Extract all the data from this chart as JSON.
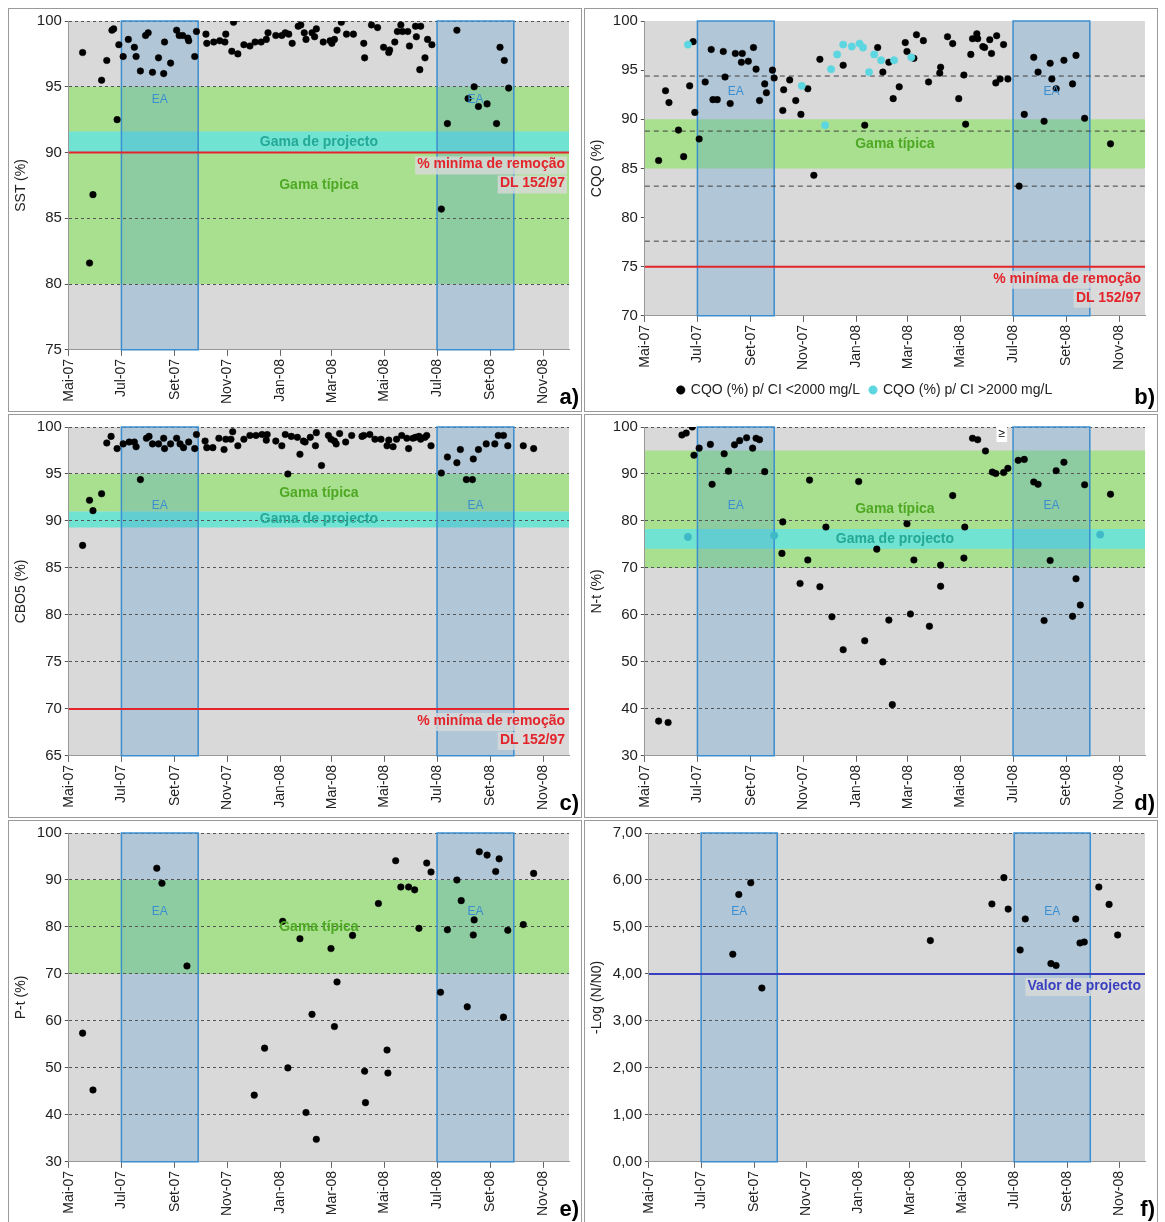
{
  "chart_data": [
    {
      "type": "scatter",
      "ylabel": "SST (%)",
      "xlim": [
        "2007-05-01",
        "2008-12-01"
      ],
      "xticks": [
        {
          "value": "2007-05-01",
          "label": "Mai-07"
        },
        {
          "value": "2007-07-01",
          "label": "Jul-07"
        },
        {
          "value": "2007-09-01",
          "label": "Set-07"
        },
        {
          "value": "2007-11-01",
          "label": "Nov-07"
        },
        {
          "value": "2008-01-01",
          "label": "Jan-08"
        },
        {
          "value": "2008-03-01",
          "label": "Mar-08"
        },
        {
          "value": "2008-05-01",
          "label": "Mai-08"
        },
        {
          "value": "2008-07-01",
          "label": "Jul-08"
        },
        {
          "value": "2008-09-01",
          "label": "Set-08"
        },
        {
          "value": "2008-11-01",
          "label": "Nov-08"
        }
      ],
      "ylim": [
        75,
        100
      ],
      "yticks": [
        75,
        80,
        85,
        90,
        95,
        100
      ],
      "grid": "y",
      "marker": "circle",
      "bands": [
        {
          "axis": "y",
          "from": 80,
          "to": 95,
          "label": "Gama típica",
          "color": "#a9e090"
        },
        {
          "axis": "y",
          "from": 90,
          "to": 91.6,
          "label": "Gama de projecto",
          "color": "#70e3d3"
        },
        {
          "axis": "x",
          "from": "2007-07-01",
          "to": "2007-09-28",
          "label": "EA",
          "color": "#3b8ed0"
        },
        {
          "axis": "x",
          "from": "2008-07-01",
          "to": "2008-09-28",
          "label": "EA",
          "color": "#3b8ed0"
        }
      ],
      "ref_lines": [
        {
          "axis": "y",
          "value": 90,
          "label": "% miníma de remoção\nDL 152/97",
          "color": "#e3242b"
        }
      ],
      "annotations": [
        "a)"
      ],
      "series": [
        {
          "color": "#000000",
          "x": [
            "2007-05-17",
            "2007-05-25",
            "2007-05-29",
            "2007-06-08",
            "2007-06-14",
            "2007-06-20",
            "2007-06-22",
            "2007-06-26",
            "2007-06-28",
            "2007-07-03",
            "2007-07-09",
            "2007-07-16",
            "2007-07-18",
            "2007-07-23",
            "2007-07-29",
            "2007-08-01",
            "2007-08-06",
            "2007-08-13",
            "2007-08-19",
            "2007-08-20",
            "2007-08-27",
            "2007-09-03",
            "2007-09-06",
            "2007-09-10",
            "2007-09-16",
            "2007-09-17",
            "2007-09-24",
            "2007-09-26",
            "2007-10-07",
            "2007-10-08",
            "2007-10-16",
            "2007-10-23",
            "2007-10-29",
            "2007-10-30",
            "2007-11-06",
            "2007-11-08",
            "2007-11-13",
            "2007-11-20",
            "2007-11-27",
            "2007-12-03",
            "2007-12-10",
            "2007-12-16",
            "2007-12-18",
            "2007-12-27",
            "2008-01-03",
            "2008-01-07",
            "2008-01-11",
            "2008-01-15",
            "2008-01-22",
            "2008-01-25",
            "2008-01-29",
            "2008-01-31",
            "2008-02-07",
            "2008-02-10",
            "2008-02-12",
            "2008-02-20",
            "2008-02-28",
            "2008-03-01",
            "2008-03-04",
            "2008-03-07",
            "2008-03-12",
            "2008-03-18",
            "2008-03-26",
            "2008-04-07",
            "2008-04-08",
            "2008-04-16",
            "2008-04-23",
            "2008-04-30",
            "2008-05-06",
            "2008-05-07",
            "2008-05-13",
            "2008-05-16",
            "2008-05-20",
            "2008-05-22",
            "2008-05-28",
            "2008-05-30",
            "2008-06-06",
            "2008-06-07",
            "2008-06-11",
            "2008-06-12",
            "2008-06-17",
            "2008-06-20",
            "2008-06-25",
            "2008-07-06",
            "2008-07-13",
            "2008-07-24",
            "2008-08-06",
            "2008-08-13",
            "2008-08-18",
            "2008-08-28",
            "2008-09-08",
            "2008-09-12",
            "2008-09-17",
            "2008-09-22"
          ],
          "values": [
            97.6,
            81.6,
            86.8,
            95.5,
            97.0,
            99.3,
            99.4,
            92.5,
            98.2,
            97.3,
            98.6,
            98.0,
            97.3,
            96.2,
            98.9,
            99.1,
            96.1,
            97.2,
            96.0,
            98.4,
            96.8,
            99.3,
            98.9,
            98.9,
            98.7,
            98.5,
            97.3,
            99.2,
            99.0,
            98.3,
            98.4,
            98.5,
            98.4,
            99.0,
            97.7,
            99.9,
            97.5,
            98.2,
            98.1,
            98.4,
            98.4,
            98.6,
            99.1,
            98.9,
            98.9,
            99.1,
            99.0,
            98.3,
            99.6,
            99.7,
            99.1,
            98.6,
            99.1,
            98.8,
            99.4,
            98.4,
            98.5,
            98.3,
            98.6,
            99.3,
            99.9,
            99.0,
            99.0,
            98.3,
            97.2,
            99.7,
            99.5,
            98.0,
            97.6,
            97.8,
            98.4,
            99.2,
            99.7,
            99.2,
            99.2,
            98.1,
            99.6,
            98.8,
            96.3,
            99.6,
            97.2,
            98.6,
            98.2,
            85.7,
            92.2,
            99.3,
            94.1,
            95.0,
            93.5,
            93.7,
            92.2,
            98.0,
            97.0,
            94.9
          ]
        }
      ]
    },
    {
      "type": "scatter",
      "ylabel": "CQO (%)",
      "xlim": [
        "2007-05-01",
        "2008-12-01"
      ],
      "xticks": [
        {
          "value": "2007-05-01",
          "label": "Mai-07"
        },
        {
          "value": "2007-07-01",
          "label": "Jul-07"
        },
        {
          "value": "2007-09-01",
          "label": "Set-07"
        },
        {
          "value": "2007-11-01",
          "label": "Nov-07"
        },
        {
          "value": "2008-01-01",
          "label": "Jan-08"
        },
        {
          "value": "2008-03-01",
          "label": "Mar-08"
        },
        {
          "value": "2008-05-01",
          "label": "Mai-08"
        },
        {
          "value": "2008-07-01",
          "label": "Jul-08"
        },
        {
          "value": "2008-09-01",
          "label": "Set-08"
        },
        {
          "value": "2008-11-01",
          "label": "Nov-08"
        }
      ],
      "ylim": [
        70,
        100
      ],
      "yticks": [
        70,
        75,
        80,
        85,
        90,
        95,
        100
      ],
      "marker": "circle",
      "legend": "bottom",
      "bands": [
        {
          "axis": "y",
          "from": 85,
          "to": 90,
          "label": "Gama típica",
          "color": "#a9e090"
        },
        {
          "axis": "x",
          "from": "2007-07-01",
          "to": "2007-09-28",
          "label": "EA",
          "color": "#3b8ed0"
        },
        {
          "axis": "x",
          "from": "2008-07-01",
          "to": "2008-09-28",
          "label": "EA",
          "color": "#3b8ed0"
        }
      ],
      "ref_lines": [
        {
          "axis": "y",
          "value": 94.4,
          "color": "#404040",
          "line_style": "dashed"
        },
        {
          "axis": "y",
          "value": 88.8,
          "color": "#404040",
          "line_style": "dashed"
        },
        {
          "axis": "y",
          "value": 83.2,
          "color": "#404040",
          "line_style": "dashed"
        },
        {
          "axis": "y",
          "value": 77.6,
          "color": "#404040",
          "line_style": "dashed"
        },
        {
          "axis": "y",
          "value": 75,
          "label": "% miníma de remoção\nDL 152/97",
          "color": "#e3242b"
        }
      ],
      "annotations": [
        "b)"
      ],
      "series": [
        {
          "name": "CQO (%) p/ CI <2000 mg/L",
          "color": "#000000",
          "x": [
            "2007-05-17",
            "2007-05-25",
            "2007-05-29",
            "2007-06-09",
            "2007-06-15",
            "2007-06-22",
            "2007-06-26",
            "2007-06-28",
            "2007-07-03",
            "2007-07-10",
            "2007-07-17",
            "2007-07-19",
            "2007-07-24",
            "2007-07-31",
            "2007-08-02",
            "2007-08-08",
            "2007-08-14",
            "2007-08-21",
            "2007-08-22",
            "2007-08-29",
            "2007-09-04",
            "2007-09-07",
            "2007-09-11",
            "2007-09-17",
            "2007-09-19",
            "2007-09-26",
            "2007-09-28",
            "2007-10-08",
            "2007-10-09",
            "2007-10-16",
            "2007-10-23",
            "2007-10-29",
            "2007-11-06",
            "2007-11-13",
            "2007-11-20",
            "2007-12-17",
            "2008-01-11",
            "2008-01-26",
            "2008-02-01",
            "2008-02-08",
            "2008-02-13",
            "2008-02-20",
            "2008-02-27",
            "2008-02-29",
            "2008-03-08",
            "2008-03-11",
            "2008-03-19",
            "2008-03-25",
            "2008-04-07",
            "2008-04-08",
            "2008-04-16",
            "2008-04-22",
            "2008-04-29",
            "2008-05-05",
            "2008-05-07",
            "2008-05-13",
            "2008-05-15",
            "2008-05-20",
            "2008-05-21",
            "2008-05-27",
            "2008-05-29",
            "2008-06-04",
            "2008-06-06",
            "2008-06-11",
            "2008-06-12",
            "2008-06-16",
            "2008-06-20",
            "2008-06-25",
            "2008-07-08",
            "2008-07-14",
            "2008-07-25",
            "2008-07-30",
            "2008-08-06",
            "2008-08-13",
            "2008-08-15",
            "2008-08-20",
            "2008-08-29",
            "2008-09-08",
            "2008-09-12",
            "2008-09-22",
            "2008-10-22"
          ],
          "values": [
            85.8,
            92.9,
            91.7,
            88.9,
            86.2,
            93.4,
            97.9,
            90.7,
            88.0,
            93.8,
            97.1,
            92.0,
            92.0,
            96.9,
            94.3,
            91.6,
            96.7,
            95.8,
            96.7,
            95.9,
            97.3,
            95.1,
            91.9,
            93.6,
            92.7,
            95.0,
            94.2,
            90.9,
            93.0,
            94.0,
            91.9,
            90.5,
            93.1,
            84.3,
            96.1,
            95.5,
            89.4,
            97.3,
            94.8,
            95.8,
            92.1,
            93.3,
            97.8,
            96.9,
            96.2,
            98.6,
            98.0,
            93.8,
            94.7,
            95.3,
            98.4,
            97.7,
            92.1,
            94.5,
            89.5,
            96.6,
            98.2,
            98.7,
            98.2,
            97.4,
            97.3,
            98.1,
            96.7,
            93.7,
            98.5,
            94.1,
            97.6,
            94.1,
            83.2,
            90.5,
            96.3,
            94.8,
            89.8,
            95.7,
            94.1,
            93.1,
            96.0,
            93.6,
            96.5,
            90.1,
            87.5
          ]
        },
        {
          "name": "CQO (%) p/ CI >2000 mg/L",
          "color": "#5cd6e0",
          "x": [
            "2007-06-20",
            "2007-10-30",
            "2007-11-26",
            "2007-12-03",
            "2007-12-10",
            "2007-12-17",
            "2007-12-27",
            "2008-01-05",
            "2008-01-09",
            "2008-01-16",
            "2008-01-22",
            "2008-01-30",
            "2008-02-14",
            "2008-03-05"
          ],
          "values": [
            97.6,
            93.4,
            89.4,
            95.1,
            96.6,
            97.6,
            97.4,
            97.7,
            97.3,
            94.8,
            96.6,
            96.0,
            96.0,
            96.3
          ]
        }
      ]
    },
    {
      "type": "scatter",
      "ylabel": "CBO5 (%)",
      "xlim": [
        "2007-05-01",
        "2008-12-01"
      ],
      "xticks": [
        {
          "value": "2007-05-01",
          "label": "Mai-07"
        },
        {
          "value": "2007-07-01",
          "label": "Jul-07"
        },
        {
          "value": "2007-09-01",
          "label": "Set-07"
        },
        {
          "value": "2007-11-01",
          "label": "Nov-07"
        },
        {
          "value": "2008-01-01",
          "label": "Jan-08"
        },
        {
          "value": "2008-03-01",
          "label": "Mar-08"
        },
        {
          "value": "2008-05-01",
          "label": "Mai-08"
        },
        {
          "value": "2008-07-01",
          "label": "Jul-08"
        },
        {
          "value": "2008-09-01",
          "label": "Set-08"
        },
        {
          "value": "2008-11-01",
          "label": "Nov-08"
        }
      ],
      "ylim": [
        65,
        100
      ],
      "yticks": [
        65,
        70,
        75,
        80,
        85,
        90,
        95,
        100
      ],
      "grid": "y",
      "marker": "circle",
      "bands": [
        {
          "axis": "y",
          "from": 91,
          "to": 95,
          "label": "Gama típica",
          "color": "#a9e090"
        },
        {
          "axis": "y",
          "from": 89.3,
          "to": 91,
          "label": "Gama de projecto",
          "color": "#70e3d3"
        },
        {
          "axis": "x",
          "from": "2007-07-01",
          "to": "2007-09-28",
          "label": "EA",
          "color": "#3b8ed0"
        },
        {
          "axis": "x",
          "from": "2008-07-01",
          "to": "2008-09-28",
          "label": "EA",
          "color": "#3b8ed0"
        }
      ],
      "ref_lines": [
        {
          "axis": "y",
          "value": 70,
          "label": "% miníma de remoção\nDL 152/97",
          "color": "#e3242b"
        }
      ],
      "annotations": [
        "c)"
      ],
      "series": [
        {
          "color": "#000000",
          "x": [
            "2007-05-17",
            "2007-05-25",
            "2007-05-29",
            "2007-06-08",
            "2007-06-14",
            "2007-06-19",
            "2007-06-26",
            "2007-07-03",
            "2007-07-10",
            "2007-07-16",
            "2007-07-18",
            "2007-07-23",
            "2007-07-30",
            "2007-08-02",
            "2007-08-06",
            "2007-08-13",
            "2007-08-19",
            "2007-08-20",
            "2007-08-27",
            "2007-09-03",
            "2007-09-07",
            "2007-09-11",
            "2007-09-17",
            "2007-09-24",
            "2007-09-26",
            "2007-10-06",
            "2007-10-08",
            "2007-10-15",
            "2007-10-22",
            "2007-10-28",
            "2007-10-30",
            "2007-11-05",
            "2007-11-07",
            "2007-11-13",
            "2007-11-20",
            "2007-11-27",
            "2007-12-04",
            "2007-12-11",
            "2007-12-16",
            "2007-12-17",
            "2007-12-27",
            "2008-01-03",
            "2008-01-07",
            "2008-01-10",
            "2008-01-14",
            "2008-01-21",
            "2008-01-24",
            "2008-01-28",
            "2008-01-30",
            "2008-02-05",
            "2008-02-11",
            "2008-02-12",
            "2008-02-18",
            "2008-02-26",
            "2008-02-29",
            "2008-03-04",
            "2008-03-06",
            "2008-03-10",
            "2008-03-17",
            "2008-03-24",
            "2008-04-05",
            "2008-04-07",
            "2008-04-14",
            "2008-04-20",
            "2008-04-27",
            "2008-05-04",
            "2008-05-06",
            "2008-05-11",
            "2008-05-15",
            "2008-05-21",
            "2008-05-27",
            "2008-05-29",
            "2008-06-03",
            "2008-06-06",
            "2008-06-10",
            "2008-06-12",
            "2008-06-17",
            "2008-06-19",
            "2008-06-24",
            "2008-07-06",
            "2008-07-13",
            "2008-07-24",
            "2008-07-28",
            "2008-08-04",
            "2008-08-11",
            "2008-08-12",
            "2008-08-18",
            "2008-08-27",
            "2008-09-06",
            "2008-09-10",
            "2008-09-16",
            "2008-09-21",
            "2008-10-09",
            "2008-10-21"
          ],
          "values": [
            87.4,
            92.2,
            91.1,
            92.9,
            98.3,
            99.0,
            97.7,
            98.2,
            98.4,
            98.4,
            97.9,
            94.4,
            98.8,
            99.0,
            98.2,
            98.2,
            98.8,
            97.7,
            98.2,
            98.8,
            98.2,
            97.8,
            98.4,
            97.7,
            99.2,
            98.5,
            97.8,
            97.8,
            98.8,
            97.6,
            98.7,
            98.7,
            99.5,
            98.0,
            98.7,
            99.1,
            99.1,
            99.2,
            98.6,
            99.2,
            98.5,
            98.0,
            99.2,
            95.0,
            99.0,
            98.9,
            97.1,
            98.5,
            98.4,
            98.9,
            98.0,
            99.4,
            95.9,
            99.1,
            98.7,
            98.5,
            98.2,
            99.3,
            98.4,
            99.1,
            99.0,
            99.1,
            99.2,
            98.7,
            98.7,
            98.0,
            98.6,
            97.9,
            98.7,
            99.1,
            98.8,
            97.7,
            98.8,
            98.9,
            99.0,
            98.7,
            98.9,
            99.1,
            98.0,
            95.1,
            96.8,
            96.2,
            97.6,
            94.4,
            94.4,
            96.6,
            97.6,
            98.2,
            98.2,
            99.1,
            99.1,
            98.0,
            98.0,
            97.7
          ]
        }
      ]
    },
    {
      "type": "scatter",
      "ylabel": "N-t (%)",
      "xlim": [
        "2007-05-01",
        "2008-12-01"
      ],
      "xticks": [
        {
          "value": "2007-05-01",
          "label": "Mai-07"
        },
        {
          "value": "2007-07-01",
          "label": "Jul-07"
        },
        {
          "value": "2007-09-01",
          "label": "Set-07"
        },
        {
          "value": "2007-11-01",
          "label": "Nov-07"
        },
        {
          "value": "2008-01-01",
          "label": "Jan-08"
        },
        {
          "value": "2008-03-01",
          "label": "Mar-08"
        },
        {
          "value": "2008-05-01",
          "label": "Mai-08"
        },
        {
          "value": "2008-07-01",
          "label": "Jul-08"
        },
        {
          "value": "2008-09-01",
          "label": "Set-08"
        },
        {
          "value": "2008-11-01",
          "label": "Nov-08"
        }
      ],
      "ylim": [
        30,
        100
      ],
      "yticks": [
        30,
        40,
        50,
        60,
        70,
        80,
        90,
        100
      ],
      "grid": "y",
      "marker": "circle",
      "bands": [
        {
          "axis": "y",
          "from": 70,
          "to": 95,
          "label": "Gama típica",
          "color": "#a9e090"
        },
        {
          "axis": "y",
          "from": 74.1,
          "to": 78.3,
          "label": "Gama de projecto",
          "color": "#70e3d3"
        },
        {
          "axis": "x",
          "from": "2007-07-01",
          "to": "2007-09-28",
          "label": "EA",
          "color": "#3b8ed0"
        },
        {
          "axis": "x",
          "from": "2008-07-01",
          "to": "2008-09-28",
          "label": "EA",
          "color": "#3b8ed0"
        }
      ],
      "annotations": [
        "d)",
        {
          "text": "≥",
          "x": "2008-06-18",
          "y": 98.5
        }
      ],
      "series": [
        {
          "color": "#000000",
          "x": [
            "2007-05-17",
            "2007-05-28",
            "2007-06-13",
            "2007-06-18",
            "2007-06-25",
            "2007-06-27",
            "2007-07-03",
            "2007-07-16",
            "2007-07-18",
            "2007-08-01",
            "2007-08-06",
            "2007-08-13",
            "2007-08-19",
            "2007-08-27",
            "2007-09-03",
            "2007-09-07",
            "2007-09-11",
            "2007-09-17",
            "2007-10-07",
            "2007-10-08",
            "2007-10-28",
            "2007-11-06",
            "2007-11-08",
            "2007-11-20",
            "2007-11-27",
            "2007-12-04",
            "2007-12-17",
            "2008-01-04",
            "2008-01-11",
            "2008-01-25",
            "2008-02-01",
            "2008-02-08",
            "2008-02-12",
            "2008-02-29",
            "2008-03-04",
            "2008-03-08",
            "2008-03-26",
            "2008-04-08",
            "2008-04-08",
            "2008-04-22",
            "2008-05-05",
            "2008-05-06",
            "2008-05-15",
            "2008-05-21",
            "2008-05-30",
            "2008-06-07",
            "2008-06-11",
            "2008-06-20",
            "2008-06-25",
            "2008-07-07",
            "2008-07-14",
            "2008-07-25",
            "2008-07-30",
            "2008-08-06",
            "2008-08-13",
            "2008-08-20",
            "2008-08-29",
            "2008-09-08",
            "2008-09-12",
            "2008-09-17",
            "2008-09-22",
            "2008-10-22"
          ],
          "values": [
            37.4,
            37.1,
            98.3,
            98.7,
            100.0,
            94.0,
            95.5,
            96.3,
            87.8,
            94.3,
            90.6,
            96.2,
            97.1,
            97.7,
            95.5,
            97.6,
            97.3,
            90.5,
            73.1,
            79.8,
            66.7,
            71.7,
            88.7,
            66.0,
            78.7,
            59.6,
            52.6,
            88.4,
            54.5,
            74.0,
            50.0,
            58.9,
            40.9,
            79.4,
            60.2,
            71.7,
            57.6,
            70.6,
            66.1,
            85.4,
            72.1,
            78.7,
            97.6,
            97.3,
            94.9,
            90.4,
            90.1,
            90.3,
            91.2,
            92.9,
            93.1,
            88.3,
            87.8,
            58.8,
            71.6,
            90.7,
            92.5,
            59.7,
            67.7,
            62.1,
            87.7,
            85.7
          ]
        },
        {
          "color": "#3fb8c8",
          "x": [
            "2007-06-20",
            "2007-09-28",
            "2008-10-10"
          ],
          "values": [
            76.6,
            76.9,
            77.1
          ]
        }
      ]
    },
    {
      "type": "scatter",
      "ylabel": "P-t (%)",
      "xlim": [
        "2007-05-01",
        "2008-12-01"
      ],
      "xticks": [
        {
          "value": "2007-05-01",
          "label": "Mai-07"
        },
        {
          "value": "2007-07-01",
          "label": "Jul-07"
        },
        {
          "value": "2007-09-01",
          "label": "Set-07"
        },
        {
          "value": "2007-11-01",
          "label": "Nov-07"
        },
        {
          "value": "2008-01-01",
          "label": "Jan-08"
        },
        {
          "value": "2008-03-01",
          "label": "Mar-08"
        },
        {
          "value": "2008-05-01",
          "label": "Mai-08"
        },
        {
          "value": "2008-07-01",
          "label": "Jul-08"
        },
        {
          "value": "2008-09-01",
          "label": "Set-08"
        },
        {
          "value": "2008-11-01",
          "label": "Nov-08"
        }
      ],
      "ylim": [
        30,
        100
      ],
      "yticks": [
        30,
        40,
        50,
        60,
        70,
        80,
        90,
        100
      ],
      "grid": "y",
      "marker": "circle",
      "bands": [
        {
          "axis": "y",
          "from": 70,
          "to": 90,
          "label": "Gama típica",
          "color": "#a9e090"
        },
        {
          "axis": "x",
          "from": "2007-07-01",
          "to": "2007-09-28",
          "label": "EA",
          "color": "#3b8ed0"
        },
        {
          "axis": "x",
          "from": "2008-07-01",
          "to": "2008-09-28",
          "label": "EA",
          "color": "#3b8ed0"
        }
      ],
      "annotations": [
        "e)"
      ],
      "series": [
        {
          "color": "#000000",
          "x": [
            "2007-05-17",
            "2007-05-29",
            "2007-08-11",
            "2007-08-17",
            "2007-09-15",
            "2007-12-02",
            "2007-12-14",
            "2008-01-04",
            "2008-01-10",
            "2008-01-24",
            "2008-01-31",
            "2008-02-07",
            "2008-02-12",
            "2008-02-29",
            "2008-03-04",
            "2008-03-07",
            "2008-03-25",
            "2008-04-08",
            "2008-04-09",
            "2008-04-24",
            "2008-05-04",
            "2008-05-05",
            "2008-05-14",
            "2008-05-20",
            "2008-05-29",
            "2008-06-05",
            "2008-06-10",
            "2008-06-19",
            "2008-06-24",
            "2008-07-05",
            "2008-07-13",
            "2008-07-24",
            "2008-07-29",
            "2008-08-05",
            "2008-08-12",
            "2008-08-13",
            "2008-08-19",
            "2008-08-28",
            "2008-09-07",
            "2008-09-11",
            "2008-09-16",
            "2008-09-21",
            "2008-10-09",
            "2008-10-21"
          ],
          "values": [
            57.4,
            45.3,
            92.5,
            89.3,
            71.7,
            44.2,
            54.2,
            81.2,
            50.0,
            77.5,
            40.5,
            61.4,
            34.8,
            75.4,
            58.8,
            68.3,
            78.2,
            49.3,
            42.6,
            85.0,
            53.8,
            48.9,
            94.1,
            88.5,
            88.5,
            87.9,
            79.7,
            93.6,
            91.7,
            66.1,
            79.4,
            90.0,
            85.6,
            63.0,
            78.3,
            81.5,
            96.0,
            95.3,
            91.8,
            94.5,
            60.8,
            79.3,
            80.5,
            91.4
          ]
        }
      ]
    },
    {
      "type": "scatter",
      "ylabel": "-Log (N/N0)",
      "xlim": [
        "2007-05-01",
        "2008-12-01"
      ],
      "xticks": [
        {
          "value": "2007-05-01",
          "label": "Mai-07"
        },
        {
          "value": "2007-07-01",
          "label": "Jul-07"
        },
        {
          "value": "2007-09-01",
          "label": "Set-07"
        },
        {
          "value": "2007-11-01",
          "label": "Nov-07"
        },
        {
          "value": "2008-01-01",
          "label": "Jan-08"
        },
        {
          "value": "2008-03-01",
          "label": "Mar-08"
        },
        {
          "value": "2008-05-01",
          "label": "Mai-08"
        },
        {
          "value": "2008-07-01",
          "label": "Jul-08"
        },
        {
          "value": "2008-09-01",
          "label": "Set-08"
        },
        {
          "value": "2008-11-01",
          "label": "Nov-08"
        }
      ],
      "ylim": [
        0,
        7
      ],
      "yticks": [
        {
          "value": 0,
          "label": "0,00"
        },
        {
          "value": 1,
          "label": "1,00"
        },
        {
          "value": 2,
          "label": "2,00"
        },
        {
          "value": 3,
          "label": "3,00"
        },
        {
          "value": 4,
          "label": "4,00"
        },
        {
          "value": 5,
          "label": "5,00"
        },
        {
          "value": 6,
          "label": "6,00"
        },
        {
          "value": 7,
          "label": "7,00"
        }
      ],
      "grid": "y",
      "marker": "circle",
      "bands": [
        {
          "axis": "x",
          "from": "2007-07-01",
          "to": "2007-09-28",
          "label": "EA",
          "color": "#3b8ed0"
        },
        {
          "axis": "x",
          "from": "2008-07-01",
          "to": "2008-09-28",
          "label": "EA",
          "color": "#3b8ed0"
        }
      ],
      "ref_lines": [
        {
          "axis": "y",
          "value": 4,
          "label": "Valor de projecto",
          "color": "#3a3fbf"
        }
      ],
      "annotations": [
        "f)"
      ],
      "series": [
        {
          "color": "#000000",
          "x": [
            "2007-08-07",
            "2007-08-14",
            "2007-08-28",
            "2007-09-10",
            "2008-03-25",
            "2008-06-05",
            "2008-06-19",
            "2008-06-24",
            "2008-07-08",
            "2008-07-14",
            "2008-08-13",
            "2008-08-19",
            "2008-09-11",
            "2008-09-16",
            "2008-09-21",
            "2008-10-08",
            "2008-10-20",
            "2008-10-30"
          ],
          "values": [
            4.42,
            5.69,
            5.94,
            3.7,
            4.71,
            5.49,
            6.05,
            5.38,
            4.51,
            5.17,
            4.22,
            4.18,
            5.17,
            4.66,
            4.68,
            5.85,
            5.48,
            4.83
          ]
        }
      ]
    }
  ]
}
